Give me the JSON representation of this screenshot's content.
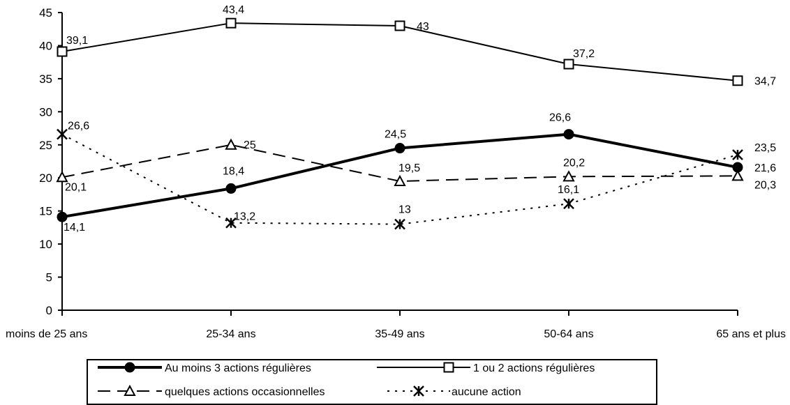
{
  "chart_data": {
    "type": "line",
    "categories": [
      "moins de 25 ans",
      "25-34 ans",
      "35-49 ans",
      "50-64 ans",
      "65 ans et plus"
    ],
    "ylim": [
      0,
      45
    ],
    "yticks": [
      "0",
      "5",
      "10",
      "15",
      "20",
      "25",
      "30",
      "35",
      "40",
      "45"
    ],
    "grid": false,
    "legend_position": "bottom",
    "series": [
      {
        "name": "Au moins 3 actions régulières",
        "values": [
          14.1,
          18.4,
          24.5,
          26.6,
          21.6
        ],
        "labels": [
          "14,1",
          "18,4",
          "24,5",
          "26,6",
          "21,6"
        ],
        "marker": "filled-circle",
        "line_style": "solid-thick",
        "color": "#000000"
      },
      {
        "name": "1 ou 2 actions régulières",
        "values": [
          39.1,
          43.4,
          43,
          37.2,
          34.7
        ],
        "labels": [
          "39,1",
          "43,4",
          "43",
          "37,2",
          "34,7"
        ],
        "marker": "open-square",
        "line_style": "solid",
        "color": "#000000"
      },
      {
        "name": "quelques actions occasionnelles",
        "values": [
          20.1,
          25,
          19.5,
          20.2,
          20.3
        ],
        "labels": [
          "20,1",
          "25",
          "19,5",
          "20,2",
          "20,3"
        ],
        "marker": "open-triangle",
        "line_style": "dashed",
        "color": "#000000"
      },
      {
        "name": "aucune action",
        "values": [
          26.6,
          13.2,
          13,
          16.1,
          23.5
        ],
        "labels": [
          "26,6",
          "13,2",
          "13",
          "16,1",
          "23,5"
        ],
        "marker": "asterisk",
        "line_style": "dotted",
        "color": "#000000"
      }
    ]
  }
}
